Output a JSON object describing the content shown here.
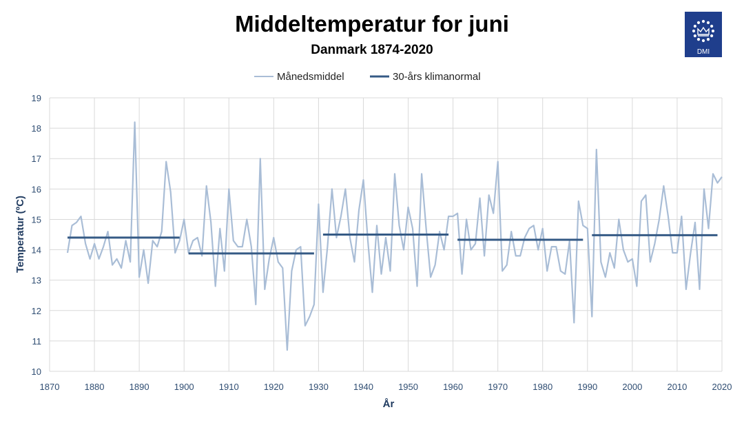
{
  "chart_data": {
    "type": "line",
    "title": "Middeltemperatur for juni",
    "subtitle": "Danmark 1874-2020",
    "xlabel": "År",
    "ylabel": "Temperatur (ºC)",
    "xlim": [
      1870,
      2020
    ],
    "ylim": [
      10,
      19
    ],
    "xticks": [
      1870,
      1880,
      1890,
      1900,
      1910,
      1920,
      1930,
      1940,
      1950,
      1960,
      1970,
      1980,
      1990,
      2000,
      2010,
      2020
    ],
    "yticks": [
      10,
      11,
      12,
      13,
      14,
      15,
      16,
      17,
      18,
      19
    ],
    "grid": true,
    "legend_position": "top-center",
    "series": [
      {
        "name": "Månedsmiddel",
        "color": "#a9bdd6",
        "x": [
          1874,
          1875,
          1876,
          1877,
          1878,
          1879,
          1880,
          1881,
          1882,
          1883,
          1884,
          1885,
          1886,
          1887,
          1888,
          1889,
          1890,
          1891,
          1892,
          1893,
          1894,
          1895,
          1896,
          1897,
          1898,
          1899,
          1900,
          1901,
          1902,
          1903,
          1904,
          1905,
          1906,
          1907,
          1908,
          1909,
          1910,
          1911,
          1912,
          1913,
          1914,
          1915,
          1916,
          1917,
          1918,
          1919,
          1920,
          1921,
          1922,
          1923,
          1924,
          1925,
          1926,
          1927,
          1928,
          1929,
          1930,
          1931,
          1932,
          1933,
          1934,
          1935,
          1936,
          1937,
          1938,
          1939,
          1940,
          1941,
          1942,
          1943,
          1944,
          1945,
          1946,
          1947,
          1948,
          1949,
          1950,
          1951,
          1952,
          1953,
          1954,
          1955,
          1956,
          1957,
          1958,
          1959,
          1960,
          1961,
          1962,
          1963,
          1964,
          1965,
          1966,
          1967,
          1968,
          1969,
          1970,
          1971,
          1972,
          1973,
          1974,
          1975,
          1976,
          1977,
          1978,
          1979,
          1980,
          1981,
          1982,
          1983,
          1984,
          1985,
          1986,
          1987,
          1988,
          1989,
          1990,
          1991,
          1992,
          1993,
          1994,
          1995,
          1996,
          1997,
          1998,
          1999,
          2000,
          2001,
          2002,
          2003,
          2004,
          2005,
          2006,
          2007,
          2008,
          2009,
          2010,
          2011,
          2012,
          2013,
          2014,
          2015,
          2016,
          2017,
          2018,
          2019,
          2020
        ],
        "values": [
          13.9,
          14.8,
          14.9,
          15.1,
          14.2,
          13.7,
          14.2,
          13.7,
          14.1,
          14.6,
          13.5,
          13.7,
          13.4,
          14.3,
          13.6,
          18.2,
          13.1,
          14.0,
          12.9,
          14.3,
          14.1,
          14.6,
          16.9,
          15.9,
          13.9,
          14.3,
          15.0,
          13.9,
          14.3,
          14.4,
          13.8,
          16.1,
          14.9,
          12.8,
          14.7,
          13.3,
          16.0,
          14.3,
          14.1,
          14.1,
          15.0,
          14.1,
          12.2,
          17.0,
          12.7,
          13.7,
          14.4,
          13.6,
          13.4,
          10.7,
          13.3,
          14.0,
          14.1,
          11.5,
          11.8,
          12.2,
          15.5,
          12.6,
          14.1,
          16.0,
          14.4,
          15.1,
          16.0,
          14.4,
          13.6,
          15.3,
          16.3,
          14.3,
          12.6,
          14.8,
          13.2,
          14.4,
          13.3,
          16.5,
          14.8,
          14.0,
          15.4,
          14.7,
          12.8,
          16.5,
          14.7,
          13.1,
          13.5,
          14.6,
          14.0,
          15.1,
          15.1,
          15.2,
          13.2,
          15.0,
          14.0,
          14.2,
          15.7,
          13.8,
          15.8,
          15.2,
          16.9,
          13.3,
          13.5,
          14.6,
          13.8,
          13.8,
          14.4,
          14.7,
          14.8,
          14.0,
          14.7,
          13.3,
          14.1,
          14.1,
          13.3,
          13.2,
          14.3,
          11.6,
          15.6,
          14.8,
          14.7,
          11.8,
          17.3,
          13.6,
          13.1,
          13.9,
          13.4,
          15.0,
          14.0,
          13.6,
          13.7,
          12.8,
          15.6,
          15.8,
          13.6,
          14.2,
          15.0,
          16.1,
          15.1,
          13.9,
          13.9,
          15.1,
          12.7,
          13.9,
          14.9,
          12.7,
          16.0,
          14.7,
          16.5,
          16.2,
          16.4
        ]
      },
      {
        "name": "30-års klimanormal",
        "color": "#355a85",
        "segments": [
          {
            "x": [
              1874,
              1899
            ],
            "value": 14.4
          },
          {
            "x": [
              1901,
              1929
            ],
            "value": 13.88
          },
          {
            "x": [
              1931,
              1959
            ],
            "value": 14.5
          },
          {
            "x": [
              1961,
              1989
            ],
            "value": 14.33
          },
          {
            "x": [
              1991,
              2019
            ],
            "value": 14.48
          }
        ]
      }
    ]
  },
  "logo": {
    "text": "DMI",
    "background": "#1f3e8c"
  }
}
